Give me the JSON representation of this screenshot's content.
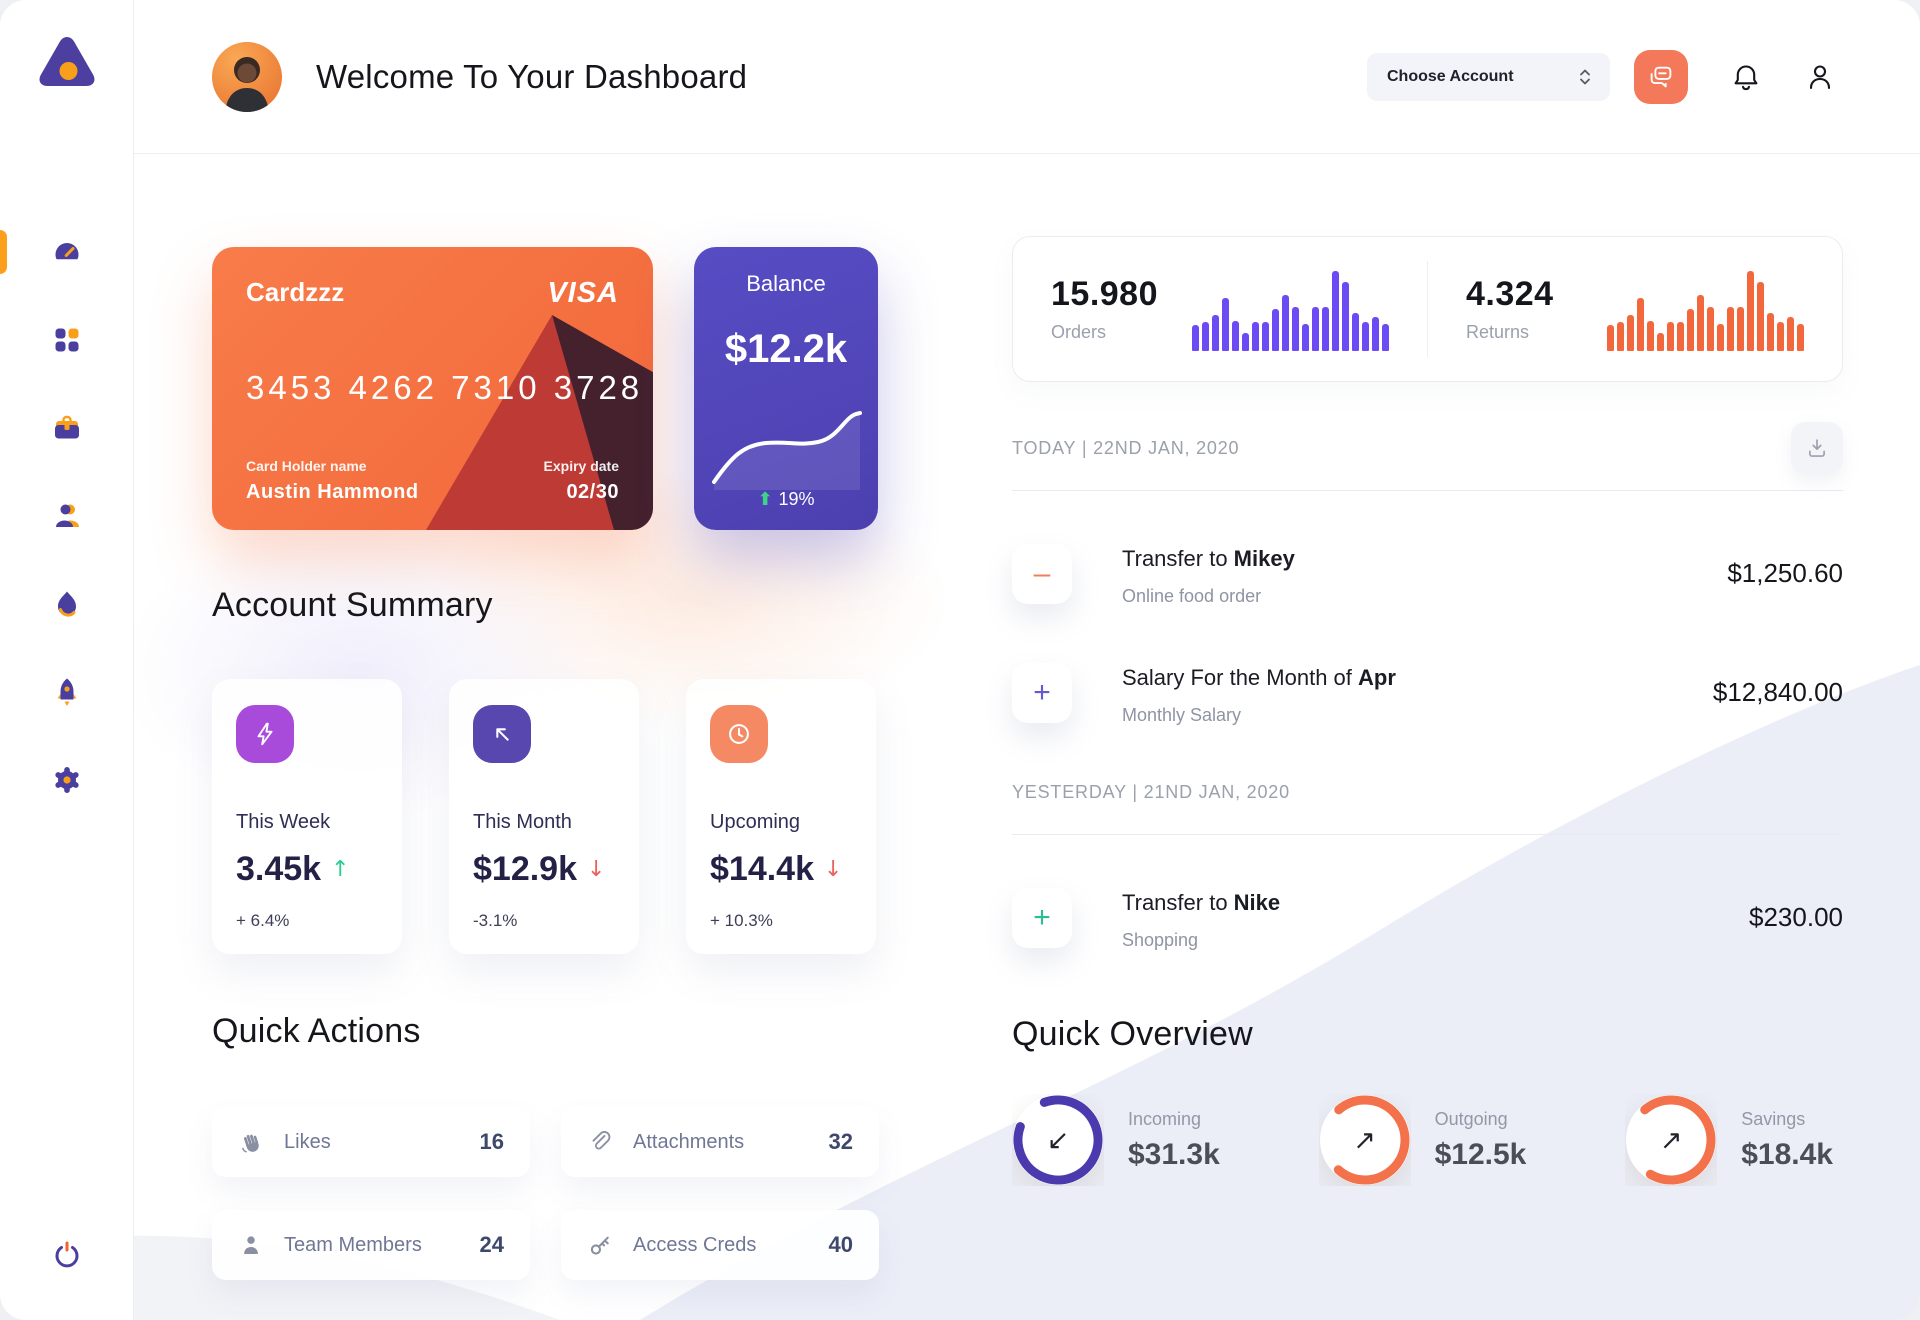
{
  "sidebar": {
    "logo": "triangle-logo",
    "items": [
      {
        "name": "dashboard",
        "icon": "speedometer-icon",
        "active": true
      },
      {
        "name": "apps",
        "icon": "grid-icon",
        "active": false
      },
      {
        "name": "work",
        "icon": "briefcase-icon",
        "active": false
      },
      {
        "name": "team",
        "icon": "members-icon",
        "active": false
      },
      {
        "name": "trending",
        "icon": "flame-icon",
        "active": false
      },
      {
        "name": "launch",
        "icon": "rocket-icon",
        "active": false
      },
      {
        "name": "settings",
        "icon": "gear-icon",
        "active": false
      }
    ],
    "power": {
      "name": "logout",
      "icon": "power-icon"
    }
  },
  "header": {
    "title": "Welcome To Your Dashboard",
    "account_selector": "Choose Account"
  },
  "credit_card": {
    "name": "Cardzzz",
    "brand": "VISA",
    "number": "3453 4262 7310 3728",
    "holder_label": "Card Holder name",
    "holder": "Austin Hammond",
    "expiry_label": "Expiry date",
    "expiry": "02/30"
  },
  "balance_card": {
    "label": "Balance",
    "amount": "$12.2k",
    "change": "19%",
    "trend": "up"
  },
  "stats": {
    "orders": {
      "value": "15.980",
      "label": "Orders",
      "bar_color": "#6C4BF4"
    },
    "returns": {
      "value": "4.324",
      "label": "Returns",
      "bar_color": "#F2683C"
    }
  },
  "chart_data": [
    {
      "type": "bar",
      "title": "Orders mini bars",
      "values": [
        33,
        36,
        45,
        66,
        37,
        23,
        36,
        36,
        52,
        70,
        55,
        34,
        55,
        55,
        100,
        86,
        47,
        36,
        43,
        34
      ],
      "ylim": [
        0,
        100
      ]
    },
    {
      "type": "bar",
      "title": "Returns mini bars",
      "values": [
        33,
        36,
        45,
        66,
        37,
        23,
        36,
        36,
        52,
        70,
        55,
        34,
        55,
        55,
        100,
        86,
        47,
        36,
        43,
        34
      ],
      "ylim": [
        0,
        100
      ]
    },
    {
      "type": "line",
      "title": "Balance trend",
      "x": [
        0,
        1,
        2,
        3,
        4,
        5,
        6
      ],
      "values": [
        10,
        28,
        46,
        50,
        49,
        58,
        74
      ]
    }
  ],
  "account_summary": {
    "title": "Account Summary",
    "cards": [
      {
        "icon": "lightning-icon",
        "icon_bg": "#A84BDB",
        "label": "This Week",
        "value": "3.45k",
        "direction": "up",
        "delta": "+ 6.4%"
      },
      {
        "icon": "arrow-upleft-icon",
        "icon_bg": "#5747AE",
        "label": "This Month",
        "value": "$12.9k",
        "direction": "down",
        "delta": "-3.1%"
      },
      {
        "icon": "clock-icon",
        "icon_bg": "#F58963",
        "label": "Upcoming",
        "value": "$14.4k",
        "direction": "down",
        "delta": "+ 10.3%"
      }
    ]
  },
  "quick_actions": {
    "title": "Quick Actions",
    "items": [
      {
        "icon": "clap-icon",
        "label": "Likes",
        "value": "16"
      },
      {
        "icon": "paperclip-icon",
        "label": "Attachments",
        "value": "32"
      },
      {
        "icon": "member-icon",
        "label": "Team Members",
        "value": "24"
      },
      {
        "icon": "key-icon",
        "label": "Access Creds",
        "value": "40"
      }
    ]
  },
  "transactions": {
    "groups": [
      {
        "header": "TODAY | 22ND JAN, 2020",
        "show_download": true,
        "rows": [
          {
            "sign_glyph": "–",
            "sign_color": "#ED7F5E",
            "title_parts": [
              {
                "text": "Transfer to ",
                "bold": false
              },
              {
                "text": "Mikey",
                "bold": true
              }
            ],
            "subtitle": "Online food order",
            "amount": "$1,250.60"
          },
          {
            "sign_glyph": "+",
            "sign_color": "#6658D3",
            "title_parts": [
              {
                "text": "Salary For the Month of ",
                "bold": false
              },
              {
                "text": "Apr",
                "bold": true
              }
            ],
            "subtitle": "Monthly Salary",
            "amount": "$12,840.00"
          }
        ]
      },
      {
        "header": "YESTERDAY | 21ND JAN, 2020",
        "show_download": false,
        "rows": [
          {
            "sign_glyph": "+",
            "sign_color": "#2BBE93",
            "title_parts": [
              {
                "text": "Transfer to ",
                "bold": false
              },
              {
                "text": "Nike",
                "bold": true
              }
            ],
            "subtitle": "Shopping",
            "amount": "$230.00"
          }
        ]
      }
    ]
  },
  "quick_overview": {
    "title": "Quick Overview",
    "items": [
      {
        "label": "Incoming",
        "value": "$31.3k",
        "ring_color": "#4B3AAE",
        "percent": 86,
        "arrow": "↙",
        "gap": "top-left"
      },
      {
        "label": "Outgoing",
        "value": "$12.5k",
        "ring_color": "#F3714B",
        "percent": 73,
        "arrow": "↗",
        "gap": "left"
      },
      {
        "label": "Savings",
        "value": "$18.4k",
        "ring_color": "#F3714B",
        "percent": 70,
        "arrow": "↗",
        "gap": "left"
      }
    ]
  },
  "colors": {
    "accent_orange": "#FCA01C",
    "accent_salmon": "#F4785A",
    "accent_purple": "#4A3F9F",
    "bars_purple": "#6C4BF4",
    "bars_orange": "#F2683C",
    "positive_green": "#2ECC8E",
    "negative_red": "#E9625E"
  }
}
